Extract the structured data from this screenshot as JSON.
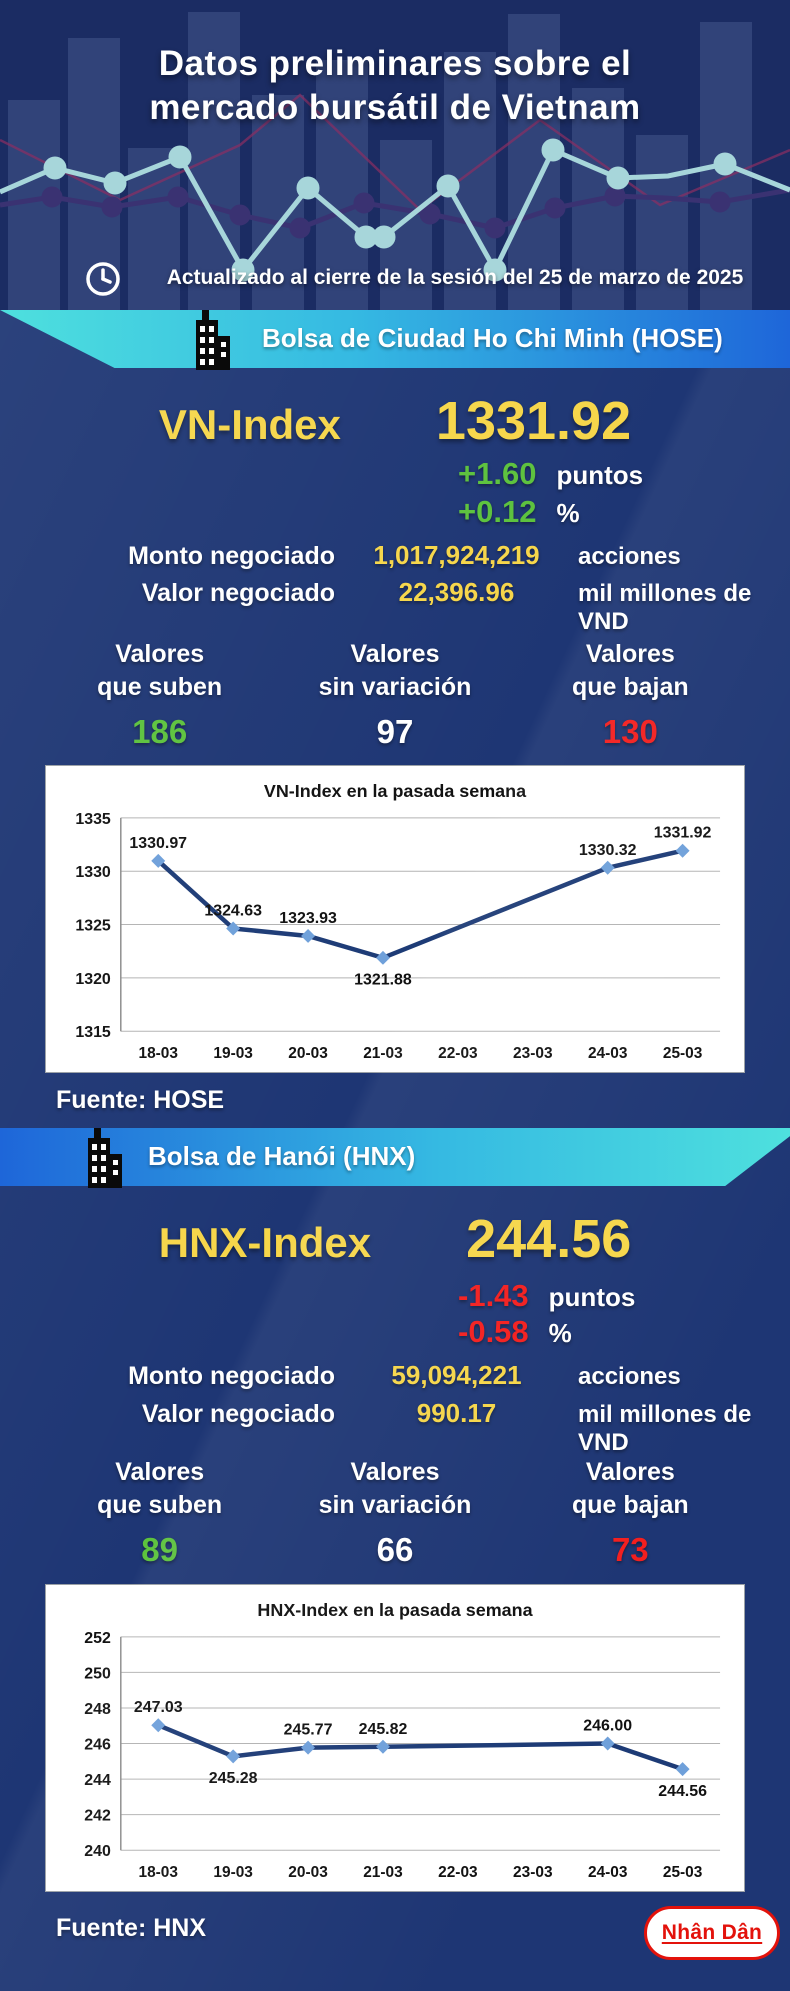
{
  "colors": {
    "background": "#1e3674",
    "header_background": "#1b2c63",
    "banner_cyan": "#4ee0de",
    "banner_blue": "#1e66d9",
    "accent_yellow": "#f6d64a",
    "up_green": "#5cc23d",
    "down_red": "#f31f1f",
    "chart_line": "#1d3b76",
    "logo_red": "#e3120b"
  },
  "header": {
    "title_line1": "Datos preliminares sobre el",
    "title_line2": "mercado bursátil de Vietnam",
    "updated_text": "Actualizado al cierre de la sesión del 25 de marzo de 2025"
  },
  "hose": {
    "banner_label": "Bolsa de Ciudad Ho Chi Minh (HOSE)",
    "index_name": "VN-Index",
    "index_value": "1331.92",
    "change_points_value": "+1.60",
    "change_points_unit": "puntos",
    "change_percent_value": "+0.12",
    "change_percent_unit": "%",
    "volume_label": "Monto negociado",
    "volume_value": "1,017,924,219",
    "volume_unit": "acciones",
    "turnover_label": "Valor negociado",
    "turnover_value": "22,396.96",
    "turnover_unit": "mil millones de VND",
    "breadth": {
      "up_label_line1": "Valores",
      "up_label_line2": "que suben",
      "up_value": "186",
      "flat_label_line1": "Valores",
      "flat_label_line2": "sin variación",
      "flat_value": "97",
      "down_label_line1": "Valores",
      "down_label_line2": "que bajan",
      "down_value": "130"
    },
    "source": "Fuente: HOSE"
  },
  "hnx": {
    "banner_label": "Bolsa de Hanói (HNX)",
    "index_name": "HNX-Index",
    "index_value": "244.56",
    "change_points_value": "-1.43",
    "change_points_unit": "puntos",
    "change_percent_value": "-0.58",
    "change_percent_unit": "%",
    "volume_label": "Monto negociado",
    "volume_value": "59,094,221",
    "volume_unit": "acciones",
    "turnover_label": "Valor negociado",
    "turnover_value": "990.17",
    "turnover_unit": "mil millones de VND",
    "breadth": {
      "up_label_line1": "Valores",
      "up_label_line2": "que suben",
      "up_value": "89",
      "flat_label_line1": "Valores",
      "flat_label_line2": "sin variación",
      "flat_value": "66",
      "down_label_line1": "Valores",
      "down_label_line2": "que bajan",
      "down_value": "73"
    },
    "source": "Fuente: HNX"
  },
  "logo_text": "Nhân Dân",
  "chart_data": [
    {
      "type": "line",
      "title": "VN-Index en la pasada semana",
      "categories": [
        "18-03",
        "19-03",
        "20-03",
        "21-03",
        "22-03",
        "23-03",
        "24-03",
        "25-03"
      ],
      "values": [
        1330.97,
        1324.63,
        1323.93,
        1321.88,
        null,
        null,
        1330.32,
        1331.92
      ],
      "labels": [
        "1330.97",
        "1324.63",
        "1323.93",
        "1321.88",
        "",
        "",
        "1330.32",
        "1331.92"
      ],
      "label_pos": [
        "above",
        "above",
        "above",
        "below",
        "",
        "",
        "above",
        "above"
      ],
      "xlabel": "",
      "ylabel": "",
      "ylim": [
        1315,
        1335
      ],
      "ytick_step": 5,
      "grid": true,
      "legend": "none"
    },
    {
      "type": "line",
      "title": "HNX-Index en la pasada semana",
      "categories": [
        "18-03",
        "19-03",
        "20-03",
        "21-03",
        "22-03",
        "23-03",
        "24-03",
        "25-03"
      ],
      "values": [
        247.03,
        245.28,
        245.77,
        245.82,
        null,
        null,
        246.0,
        244.56
      ],
      "labels": [
        "247.03",
        "245.28",
        "245.77",
        "245.82",
        "",
        "",
        "246.00",
        "244.56"
      ],
      "label_pos": [
        "above",
        "below",
        "above",
        "above",
        "",
        "",
        "above",
        "below"
      ],
      "xlabel": "",
      "ylabel": "",
      "ylim": [
        240,
        252
      ],
      "ytick_step": 2,
      "grid": true,
      "legend": "none"
    }
  ]
}
